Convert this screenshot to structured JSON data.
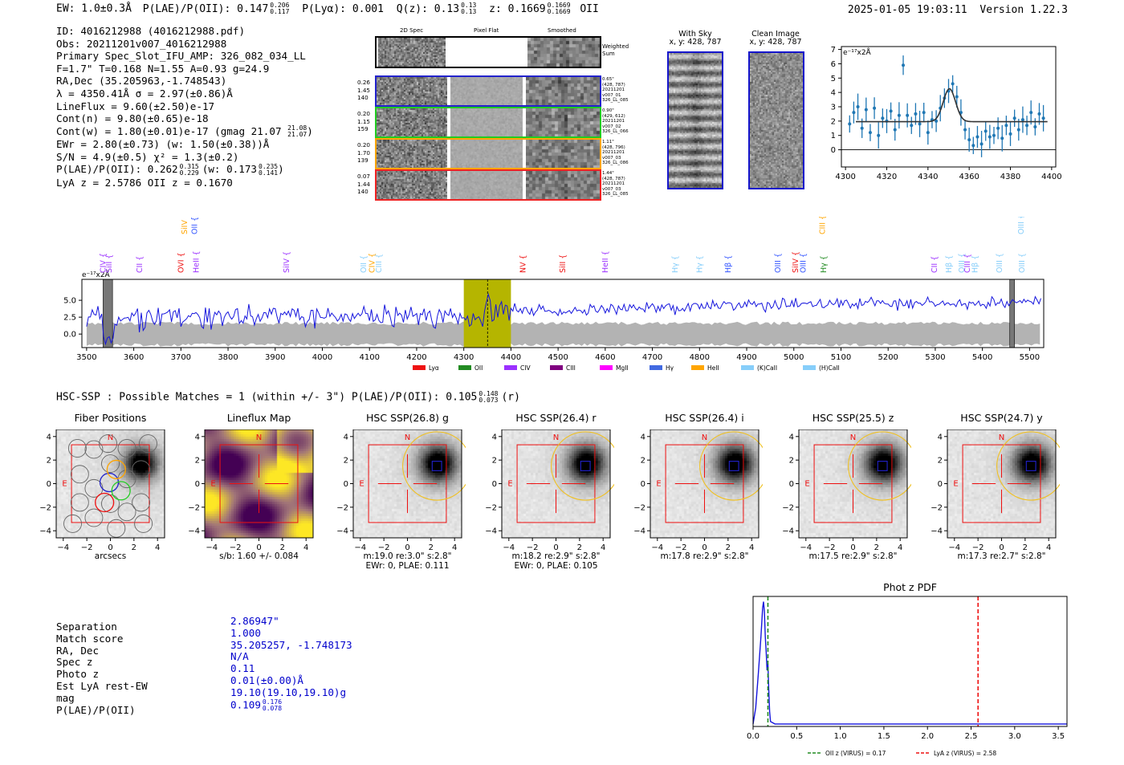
{
  "header": {
    "ew": "EW: 1.0±0.3Å",
    "plae_oii": "P(LAE)/P(OII): 0.147",
    "plae_oii_hi": "0.206",
    "plae_oii_lo": "0.117",
    "plya": "P(Lyα): 0.001",
    "qz": "Q(z): 0.13",
    "qz_hi": "0.13",
    "qz_lo": "0.13",
    "z": "z: 0.1669",
    "z_hi": "0.1669",
    "z_lo": "0.1669",
    "z_line": "OII",
    "timestamp": "2025-01-05 19:03:11",
    "version": "Version 1.22.3"
  },
  "info": {
    "id": "ID: 4016212988 (4016212988.pdf)",
    "obs": "Obs: 20211201v007_4016212988",
    "primary": "Primary Spec_Slot_IFU_AMP: 326_082_034_LL",
    "fwhm": "F=1.7\"  T=0.168  N=1.55  A=0.93  g=24.9",
    "radec": "RA,Dec (35.205963,-1.748543)",
    "lambda": "λ = 4350.41Å  σ = 2.97(±0.86)Å",
    "lineflux": "LineFlux = 9.60(±2.50)e-17",
    "contn": "Cont(n) = 9.80(±0.65)e-18",
    "contw": "Cont(w) = 1.80(±0.01)e-17 (gmag 21.07",
    "contw_hi": "21.08",
    "contw_lo": "21.07",
    "ewr": "EWr = 2.80(±0.73) (w: 1.50(±0.38))Å",
    "sn": "S/N = 4.9(±0.5)  χ² = 1.3(±0.2)",
    "plae": "P(LAE)/P(OII): 0.262",
    "plae_hi": "0.315",
    "plae_lo": "0.229",
    "plae_w": "(w: 0.173",
    "plae_w_hi": "0.235",
    "plae_w_lo": "0.141",
    "lyaz": "LyA z = 2.5786  OII z = 0.1670"
  },
  "spec2d": {
    "col_headers": [
      "2D Spec",
      "Pixel Flat",
      "Smoothed"
    ],
    "weighted_sum": "Weighted Sum",
    "rows": [
      {
        "left": [
          "0.26",
          "1.45",
          "140"
        ],
        "right": [
          "0.65\"",
          "(428, 787)",
          "20211201",
          "v007_01",
          "326_LL_085"
        ],
        "color": "#2222cc"
      },
      {
        "left": [
          "0.20",
          "1.15",
          "159"
        ],
        "right": [
          "0.90\"",
          "(429, 612)",
          "20211201",
          "v007_02",
          "326_LL_066"
        ],
        "color": "#22cc22"
      },
      {
        "left": [
          "0.20",
          "1.70",
          "139"
        ],
        "right": [
          "1.11\"",
          "(428, 796)",
          "20211201",
          "v007_03",
          "326_LL_086"
        ],
        "color": "#ffa500"
      },
      {
        "left": [
          "0.07",
          "1.44",
          "140"
        ],
        "right": [
          "1.44\"",
          "(428, 787)",
          "20211201",
          "v007_03",
          "326_LL_085"
        ],
        "color": "#ee2222"
      }
    ]
  },
  "sky": {
    "with_sky": "With Sky",
    "with_sky_xy": "x, y: 428, 787",
    "clean": "Clean Image",
    "clean_xy": "x, y: 428, 787"
  },
  "colors": {
    "blue": "#1515dd",
    "gray": "#b3b3b3",
    "olive": "#b5b500",
    "red": "#e01010",
    "fit": "#333333",
    "point": "#1f77b4"
  },
  "chart_data": [
    {
      "type": "scatter",
      "title": "",
      "unit_label": "e⁻¹⁷x2Å",
      "xlim": [
        4298,
        4402
      ],
      "ylim": [
        -1.2,
        7.2
      ],
      "xticks": [
        4300,
        4320,
        4340,
        4360,
        4380,
        4400
      ],
      "yticks": [
        0,
        1,
        2,
        3,
        4,
        5,
        6,
        7
      ],
      "x": [
        4302,
        4304,
        4306,
        4308,
        4310,
        4312,
        4314,
        4316,
        4318,
        4320,
        4322,
        4324,
        4326,
        4328,
        4330,
        4332,
        4334,
        4336,
        4338,
        4340,
        4342,
        4344,
        4346,
        4348,
        4350,
        4352,
        4354,
        4356,
        4358,
        4360,
        4362,
        4364,
        4366,
        4368,
        4370,
        4372,
        4374,
        4376,
        4378,
        4380,
        4382,
        4384,
        4386,
        4388,
        4390,
        4392,
        4394,
        4396
      ],
      "y": [
        1.8,
        2.6,
        3.0,
        1.5,
        2.8,
        1.2,
        2.9,
        1.0,
        2.2,
        2.0,
        2.7,
        1.4,
        2.4,
        5.9,
        2.4,
        1.7,
        2.5,
        1.8,
        2.6,
        1.2,
        2.1,
        2.0,
        2.9,
        3.6,
        4.1,
        4.6,
        3.7,
        2.6,
        1.4,
        0.7,
        0.3,
        0.9,
        0.4,
        1.3,
        0.9,
        1.0,
        1.5,
        0.8,
        1.7,
        1.1,
        2.2,
        1.4,
        2.1,
        1.7,
        2.6,
        1.6,
        2.5,
        2.2
      ],
      "fit": {
        "type": "gaussian",
        "center": 4350.41,
        "sigma": 2.97,
        "continuum": 1.96,
        "amplitude": 2.3,
        "x_range": [
          4305,
          4398
        ]
      }
    },
    {
      "type": "line",
      "unit_label": "e⁻¹⁷x2Å",
      "xlim": [
        3490,
        5530
      ],
      "ylim": [
        -2.0,
        8.1
      ],
      "xticks": [
        3500,
        3600,
        3700,
        3800,
        3900,
        4000,
        4100,
        4200,
        4300,
        4400,
        4500,
        4600,
        4700,
        4800,
        4900,
        5000,
        5100,
        5200,
        5300,
        5400,
        5500
      ],
      "yticks": [
        0.0,
        2.5,
        5.0
      ],
      "series": [
        {
          "name": "flux",
          "generated_from": "baseline segments",
          "segments": [
            [
              3500,
              2.6
            ],
            [
              3900,
              2.8
            ],
            [
              4300,
              2.5
            ],
            [
              4410,
              3.3
            ],
            [
              5000,
              4.4
            ],
            [
              5525,
              4.6
            ]
          ]
        }
      ],
      "error_band": 1.6,
      "highlight": [
        4300,
        4400
      ],
      "line_center": 4350.41,
      "masked": [
        [
          3535,
          3555
        ],
        [
          5458,
          5468
        ]
      ],
      "line_labels": [
        {
          "name": "CIV",
          "x": 3535,
          "color": "#9b30ff",
          "row": "low"
        },
        {
          "name": "SiII",
          "x": 3548,
          "color": "#9b30ff",
          "row": "low"
        },
        {
          "name": "SiIV",
          "x": 3708,
          "color": "#ffa500",
          "row": "high"
        },
        {
          "name": "OII",
          "x": 3729,
          "color": "#3355ff",
          "row": "high"
        },
        {
          "name": "CII",
          "x": 3613,
          "color": "#9b30ff",
          "row": "low"
        },
        {
          "name": "OVI",
          "x": 3700,
          "color": "#ee1111",
          "row": "low"
        },
        {
          "name": "HeII",
          "x": 3733,
          "color": "#9b30ff",
          "row": "low"
        },
        {
          "name": "SiIV",
          "x": 3924,
          "color": "#9b30ff",
          "row": "low"
        },
        {
          "name": "OII",
          "x": 4088,
          "color": "#87cefa",
          "row": "low"
        },
        {
          "name": "CIV",
          "x": 4106,
          "color": "#ffa500",
          "row": "low"
        },
        {
          "name": "CIII",
          "x": 4120,
          "color": "#87cefa",
          "row": "low"
        },
        {
          "name": "NV",
          "x": 4426,
          "color": "#ee1111",
          "row": "low"
        },
        {
          "name": "SiII",
          "x": 4510,
          "color": "#ee1111",
          "row": "low"
        },
        {
          "name": "HeII",
          "x": 4600,
          "color": "#9b30ff",
          "row": "low"
        },
        {
          "name": "Hγ",
          "x": 4748,
          "color": "#87cefa",
          "row": "low"
        },
        {
          "name": "Hγ",
          "x": 4800,
          "color": "#87cefa",
          "row": "low"
        },
        {
          "name": "Hβ",
          "x": 4861,
          "color": "#3355ff",
          "row": "low"
        },
        {
          "name": "OIII",
          "x": 4966,
          "color": "#3355ff",
          "row": "low"
        },
        {
          "name": "SiIV",
          "x": 5004,
          "color": "#ee1111",
          "row": "low"
        },
        {
          "name": "OIII",
          "x": 5020,
          "color": "#3355ff",
          "row": "low"
        },
        {
          "name": "CIII",
          "x": 5061,
          "color": "#ffa500",
          "row": "high"
        },
        {
          "name": "Hγ",
          "x": 5063,
          "color": "#228b22",
          "row": "low"
        },
        {
          "name": "CII",
          "x": 5298,
          "color": "#9b30ff",
          "row": "low"
        },
        {
          "name": "Hβ",
          "x": 5329,
          "color": "#87cefa",
          "row": "low"
        },
        {
          "name": "OIII",
          "x": 5356,
          "color": "#87cefa",
          "row": "low"
        },
        {
          "name": "CIII",
          "x": 5368,
          "color": "#9b30ff",
          "row": "low"
        },
        {
          "name": "Hβ",
          "x": 5384,
          "color": "#87cefa",
          "row": "low"
        },
        {
          "name": "OIII",
          "x": 5436,
          "color": "#87cefa",
          "row": "low"
        },
        {
          "name": "OIII",
          "x": 5482,
          "color": "#87cefa",
          "row": "high"
        },
        {
          "name": "OIII",
          "x": 5484,
          "color": "#87cefa",
          "row": "low"
        }
      ],
      "legend": [
        {
          "name": "Lyα",
          "color": "#ee1111"
        },
        {
          "name": "OII",
          "color": "#228b22"
        },
        {
          "name": "CIV",
          "color": "#9b30ff"
        },
        {
          "name": "CIII",
          "color": "#800080"
        },
        {
          "name": "MgII",
          "color": "#ff00ff"
        },
        {
          "name": "Hγ",
          "color": "#4169e1"
        },
        {
          "name": "HeII",
          "color": "#ffa500"
        },
        {
          "name": "(K)CaII",
          "color": "#87cefa"
        },
        {
          "name": "(H)CaII",
          "color": "#87cefa"
        }
      ]
    },
    {
      "type": "line",
      "title": "Phot z PDF",
      "xlim": [
        0,
        3.6
      ],
      "xticks": [
        0.0,
        0.5,
        1.0,
        1.5,
        2.0,
        2.5,
        3.0,
        3.5
      ],
      "series": [
        {
          "name": "pdf",
          "x": [
            0,
            0.03,
            0.06,
            0.09,
            0.11,
            0.12,
            0.13,
            0.14,
            0.15,
            0.16,
            0.17,
            0.18,
            0.19,
            0.2,
            0.25,
            0.35,
            0.5,
            1.0,
            2.0,
            3.6
          ],
          "y": [
            0.02,
            0.15,
            0.42,
            0.72,
            0.95,
            1.0,
            0.92,
            0.72,
            0.6,
            0.45,
            0.5,
            0.3,
            0.12,
            0.04,
            0.02,
            0.02,
            0.02,
            0.02,
            0.02,
            0.02
          ]
        }
      ],
      "vlines": [
        {
          "x": 0.17,
          "color": "#228b22",
          "label": "OII z (VIRUS) = 0.17"
        },
        {
          "x": 2.58,
          "color": "#ee1111",
          "label": "LyA z (VIRUS) = 2.58"
        }
      ]
    }
  ],
  "hsc": {
    "summary": "HSC-SSP : Possible Matches = 1 (within +/- 3\")  P(LAE)/P(OII): 0.105",
    "summary_hi": "0.148",
    "summary_lo": "0.073",
    "summary_band": "(r)",
    "axis_ticks": [
      "−4",
      "−2",
      "0",
      "2",
      "4"
    ],
    "n_label": "N",
    "e_label": "E",
    "panels": [
      {
        "title": "Fiber Positions",
        "caption": [
          "arcsecs"
        ]
      },
      {
        "title": "Lineflux Map",
        "caption": [
          "s/b: 1.60 +/- 0.084"
        ]
      },
      {
        "title": "HSC SSP(26.8) g",
        "caption": [
          "m:19.0  re:3.0\"  s:2.8\"",
          "EWr: 0, PLAE: 0.111"
        ]
      },
      {
        "title": "HSC SSP(26.4) r",
        "caption": [
          "m:18.2  re:2.9\"  s:2.8\"",
          "EWr: 0, PLAE: 0.105"
        ]
      },
      {
        "title": "HSC SSP(26.4) i",
        "caption": [
          "m:17.8  re:2.9\"  s:2.8\""
        ]
      },
      {
        "title": "HSC SSP(25.5) z",
        "caption": [
          "m:17.5  re:2.9\"  s:2.8\""
        ]
      },
      {
        "title": "HSC SSP(24.7) y",
        "caption": [
          "m:17.3  re:2.7\"  s:2.8\""
        ]
      }
    ]
  },
  "match": {
    "labels": [
      "Separation",
      "Match score",
      "RA, Dec",
      "Spec z",
      "Photo z",
      "Est LyA rest-EW",
      "mag",
      "P(LAE)/P(OII)"
    ],
    "values": [
      "2.86947\"",
      "1.000",
      "35.205257, -1.748173",
      "N/A",
      "0.11",
      "0.01(±0.00)Å",
      "19.10(19.10,19.10)g",
      "0.109"
    ],
    "plae_hi": "0.176",
    "plae_lo": "0.078"
  }
}
